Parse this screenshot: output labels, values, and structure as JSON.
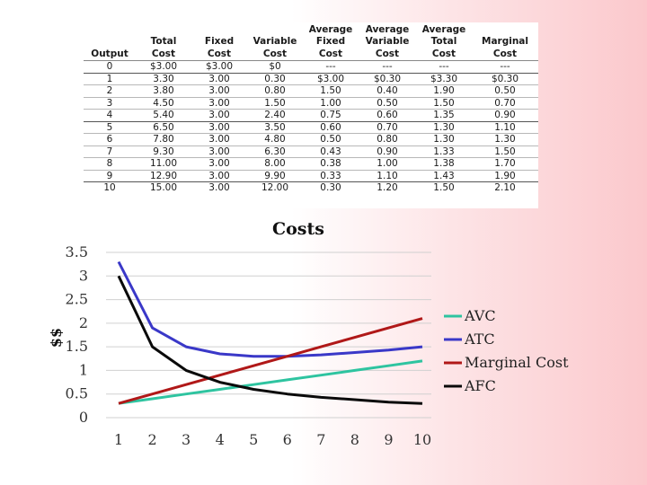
{
  "table": {
    "headers": [
      "Output",
      "Total\nCost",
      "Fixed\nCost",
      "Variable\nCost",
      "Average\nFixed\nCost",
      "Average\nVariable\nCost",
      "Average\nTotal\nCost",
      "Marginal\nCost"
    ],
    "rows": [
      [
        "0",
        "$3.00",
        "$3.00",
        "$0",
        "---",
        "---",
        "---",
        "---"
      ],
      [
        "1",
        "3.30",
        "3.00",
        "0.30",
        "$3.00",
        "$0.30",
        "$3.30",
        "$0.30"
      ],
      [
        "2",
        "3.80",
        "3.00",
        "0.80",
        "1.50",
        "0.40",
        "1.90",
        "0.50"
      ],
      [
        "3",
        "4.50",
        "3.00",
        "1.50",
        "1.00",
        "0.50",
        "1.50",
        "0.70"
      ],
      [
        "4",
        "5.40",
        "3.00",
        "2.40",
        "0.75",
        "0.60",
        "1.35",
        "0.90"
      ],
      [
        "5",
        "6.50",
        "3.00",
        "3.50",
        "0.60",
        "0.70",
        "1.30",
        "1.10"
      ],
      [
        "6",
        "7.80",
        "3.00",
        "4.80",
        "0.50",
        "0.80",
        "1.30",
        "1.30"
      ],
      [
        "7",
        "9.30",
        "3.00",
        "6.30",
        "0.43",
        "0.90",
        "1.33",
        "1.50"
      ],
      [
        "8",
        "11.00",
        "3.00",
        "8.00",
        "0.38",
        "1.00",
        "1.38",
        "1.70"
      ],
      [
        "9",
        "12.90",
        "3.00",
        "9.90",
        "0.33",
        "1.10",
        "1.43",
        "1.90"
      ],
      [
        "10",
        "15.00",
        "3.00",
        "12.00",
        "0.30",
        "1.20",
        "1.50",
        "2.10"
      ]
    ]
  },
  "chart_data": {
    "type": "line",
    "title": "Costs",
    "xlabel": "",
    "ylabel": "$$",
    "x": [
      1,
      2,
      3,
      4,
      5,
      6,
      7,
      8,
      9,
      10
    ],
    "ylim": [
      0,
      3.5
    ],
    "yticks": [
      "0",
      "0.5",
      "1",
      "1.5",
      "2",
      "2.5",
      "3",
      "3.5"
    ],
    "xticks": [
      "1",
      "2",
      "3",
      "4",
      "5",
      "6",
      "7",
      "8",
      "9",
      "10"
    ],
    "grid": true,
    "legend_position": "right",
    "series": [
      {
        "name": "AVC",
        "color": "#2ec4a0",
        "values": [
          0.3,
          0.4,
          0.5,
          0.6,
          0.7,
          0.8,
          0.9,
          1.0,
          1.1,
          1.2
        ]
      },
      {
        "name": "ATC",
        "color": "#3a38c8",
        "values": [
          3.3,
          1.9,
          1.5,
          1.35,
          1.3,
          1.3,
          1.33,
          1.38,
          1.43,
          1.5
        ]
      },
      {
        "name": "Marginal Cost",
        "color": "#b01818",
        "values": [
          0.3,
          0.5,
          0.7,
          0.9,
          1.1,
          1.3,
          1.5,
          1.7,
          1.9,
          2.1
        ]
      },
      {
        "name": "AFC",
        "color": "#0a0a0a",
        "values": [
          3.0,
          1.5,
          1.0,
          0.75,
          0.6,
          0.5,
          0.43,
          0.38,
          0.33,
          0.3
        ]
      }
    ]
  }
}
